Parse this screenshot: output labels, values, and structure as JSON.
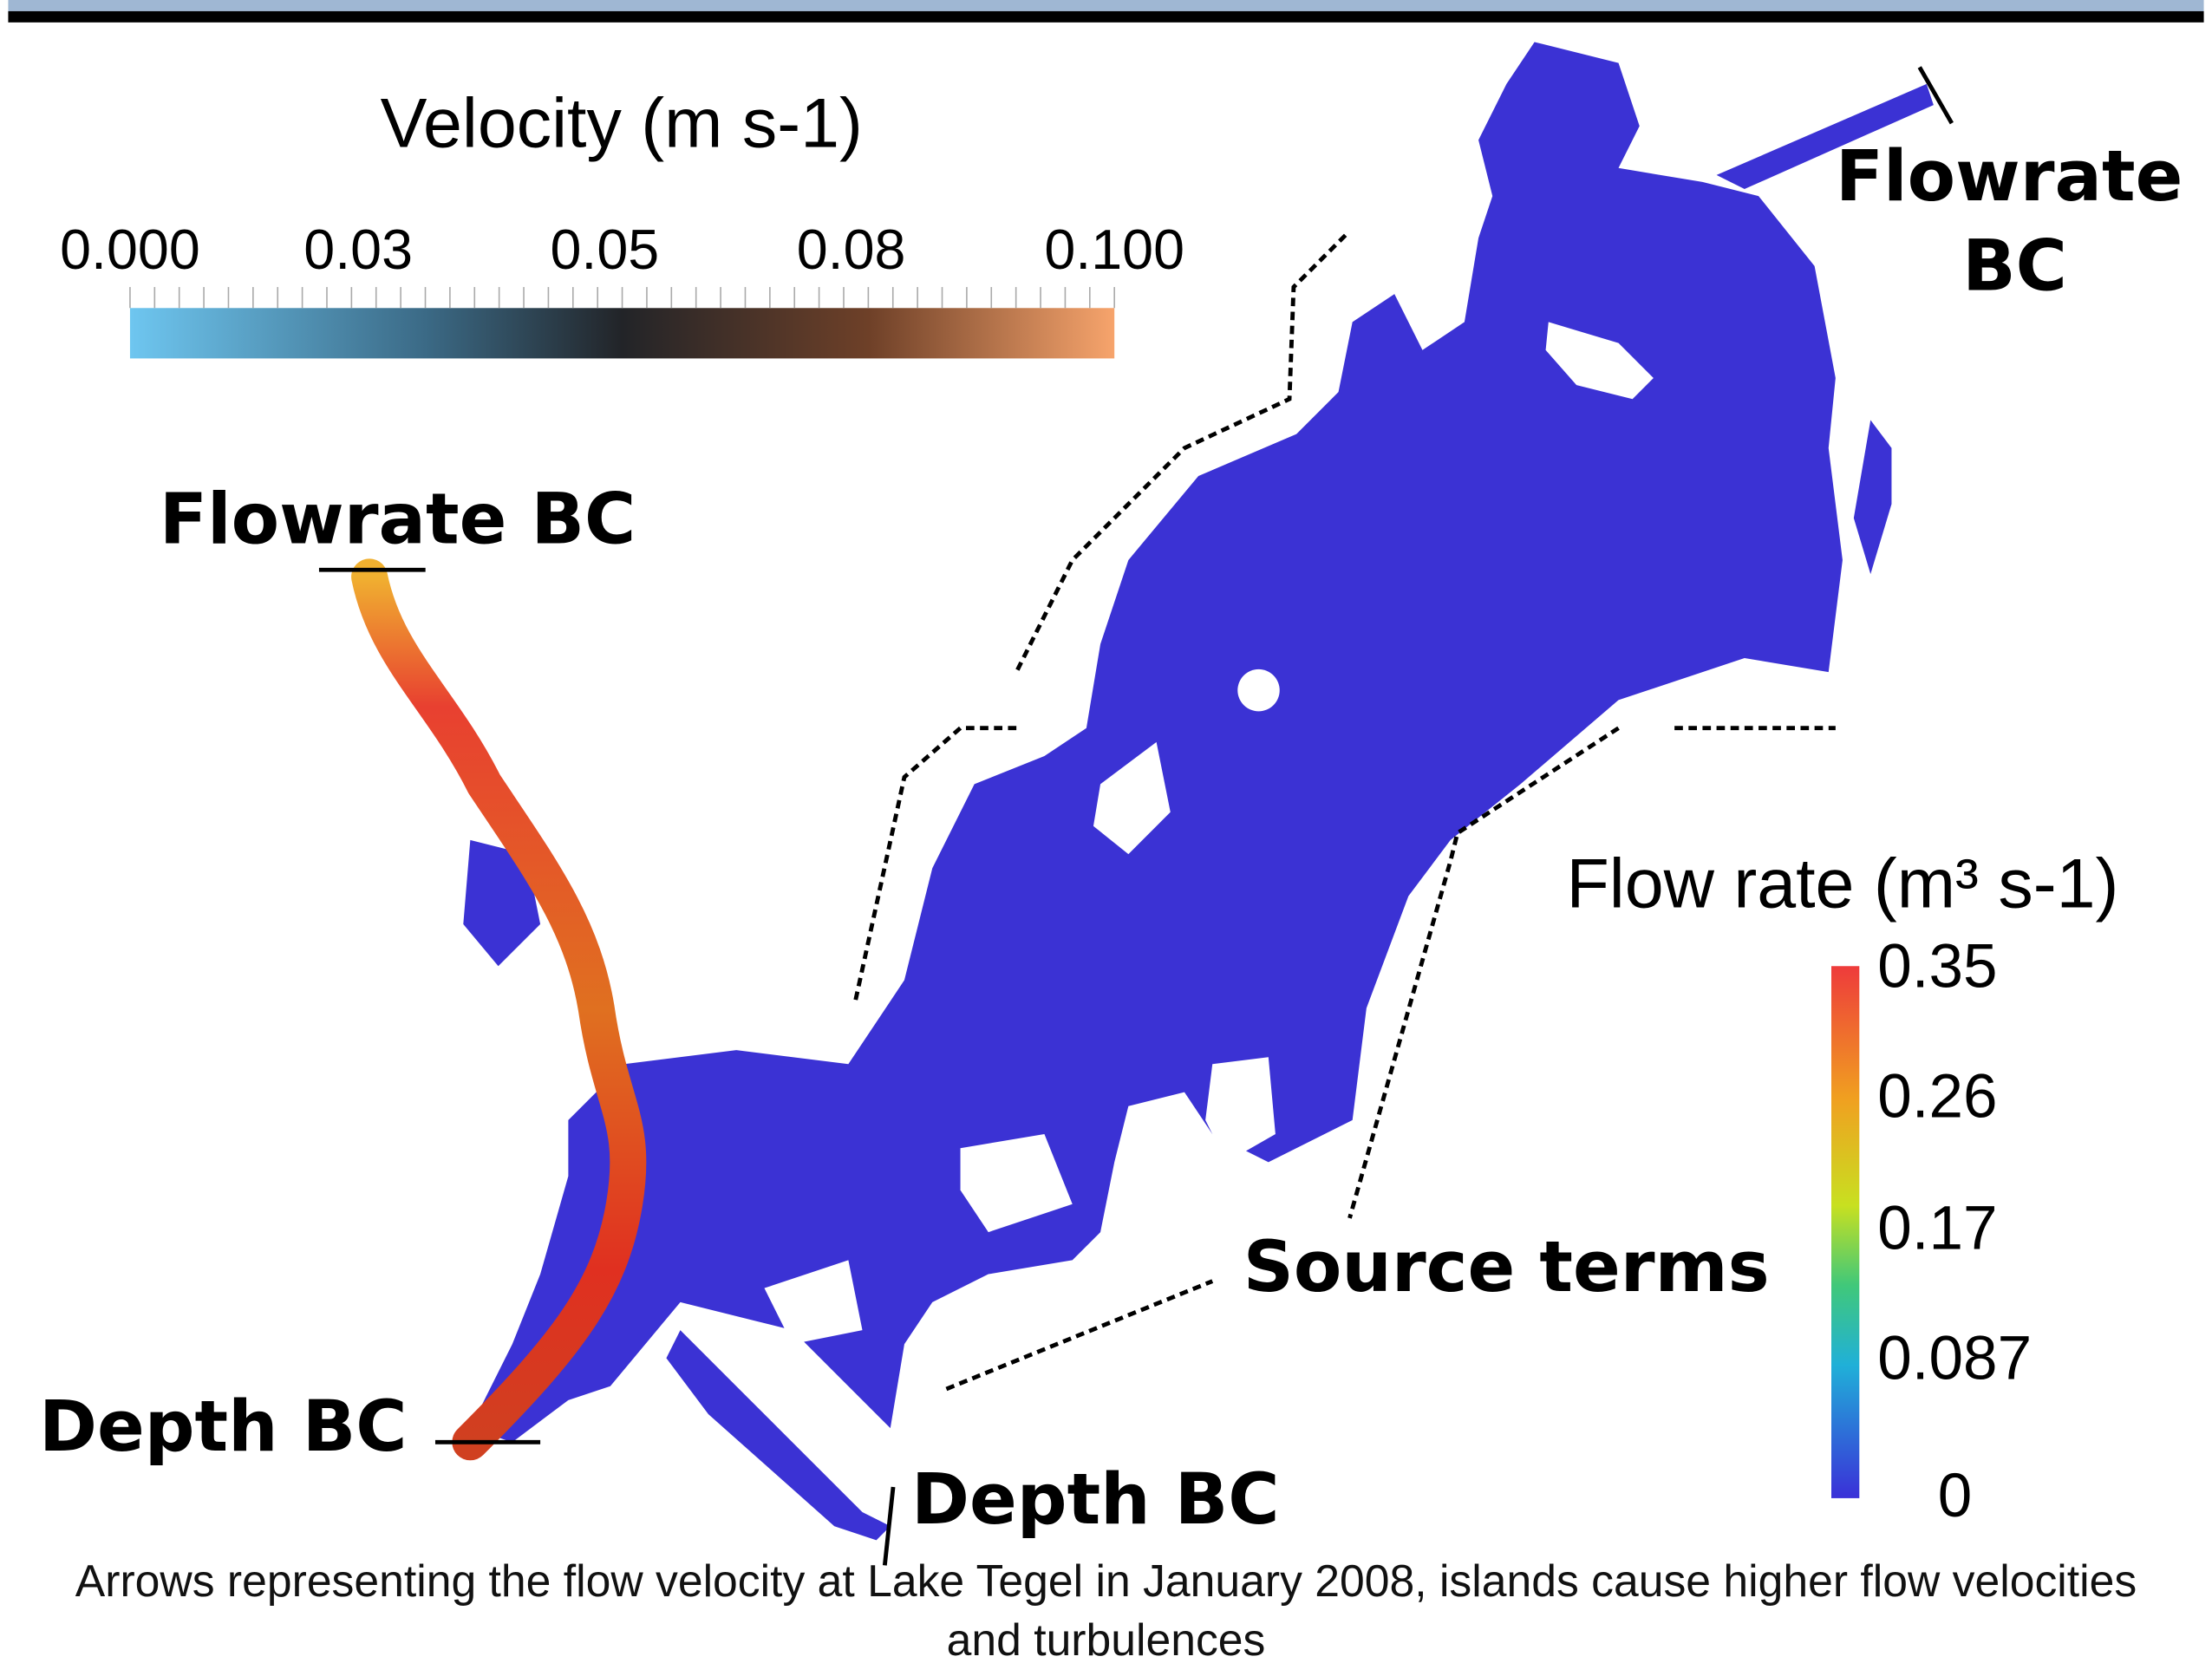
{
  "velocity_bar": {
    "title": "Velocity (m s-1)",
    "ticks": [
      "0.000",
      "0.03",
      "0.05",
      "0.08",
      "0.100"
    ]
  },
  "flow_bar": {
    "title": "Flow rate (m³ s-1)",
    "ticks": [
      "0.35",
      "0.26",
      "0.17",
      "0.087",
      "0"
    ]
  },
  "annotations": {
    "flowrate_bc_right": "Flowrate BC",
    "flowrate_bc_left": "Flowrate BC",
    "depth_bc_left": "Depth BC",
    "depth_bc_bottom": "Depth BC",
    "source_terms": "Source terms"
  },
  "caption": "Arrows representing the flow velocity at Lake Tegel in January 2008, islands cause higher flow velocities and turbulences"
}
